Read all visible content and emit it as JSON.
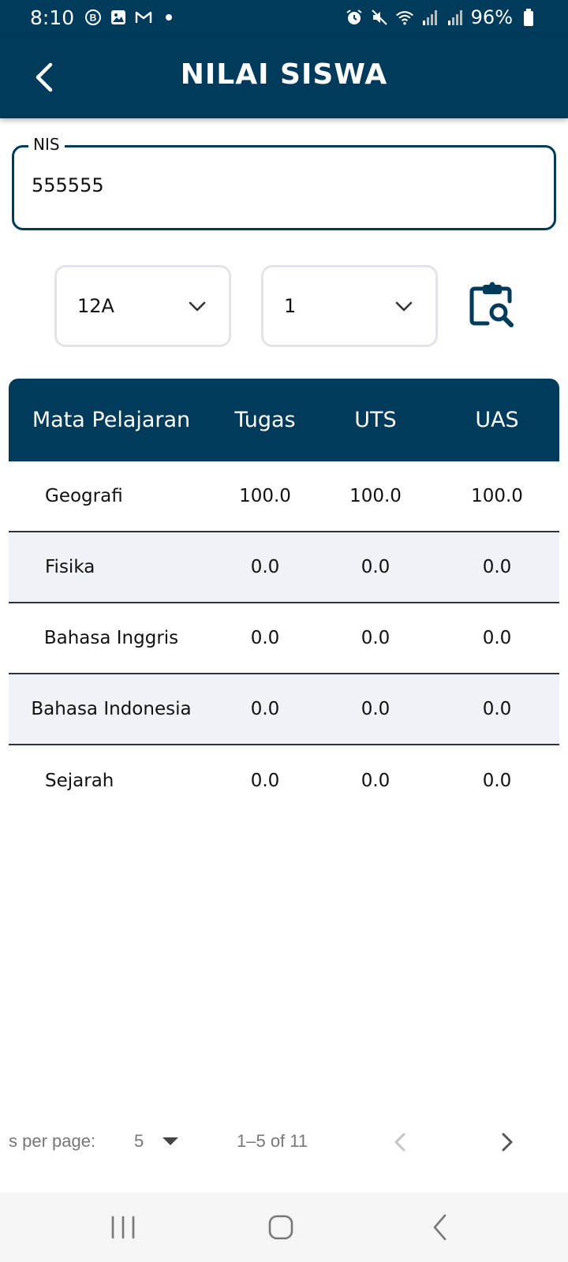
{
  "status_bar": {
    "time": "8:10",
    "battery": "96%",
    "left_icons": [
      "b-badge-icon",
      "image-icon",
      "gmail-icon",
      "dot-icon"
    ],
    "right_icons": [
      "alarm-icon",
      "mute-icon",
      "wifi-icon",
      "signal-icon",
      "signal-icon",
      "battery-icon"
    ]
  },
  "header": {
    "title": "NILAI SISWA"
  },
  "nis": {
    "label": "NIS",
    "value": "555555"
  },
  "filters": {
    "class_value": "12A",
    "semester_value": "1"
  },
  "table": {
    "headers": {
      "subject": "Mata Pelajaran",
      "tugas": "Tugas",
      "uts": "UTS",
      "uas": "UAS"
    },
    "rows": [
      {
        "subject": "Geografi",
        "tugas": "100.0",
        "uts": "100.0",
        "uas": "100.0"
      },
      {
        "subject": "Fisika",
        "tugas": "0.0",
        "uts": "0.0",
        "uas": "0.0"
      },
      {
        "subject": "Bahasa Inggris",
        "tugas": "0.0",
        "uts": "0.0",
        "uas": "0.0"
      },
      {
        "subject": "Bahasa Indonesia",
        "tugas": "0.0",
        "uts": "0.0",
        "uas": "0.0"
      },
      {
        "subject": "Sejarah",
        "tugas": "0.0",
        "uts": "0.0",
        "uas": "0.0"
      }
    ]
  },
  "pagination": {
    "rows_per_page_label": "s per page:",
    "rows_per_page_value": "5",
    "range": "1–5 of 11"
  },
  "colors": {
    "primary": "#003b5c",
    "row_alt": "#eff3f7",
    "nav_bar": "#f5f5f5"
  }
}
